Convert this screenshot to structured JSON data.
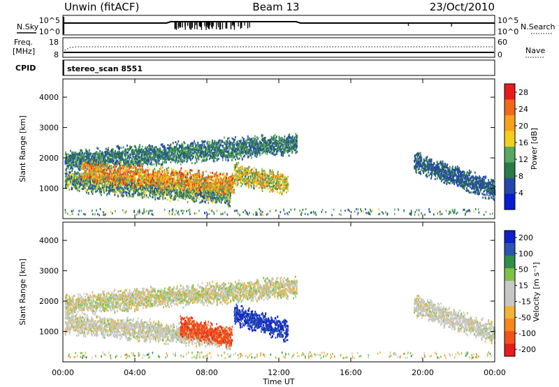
{
  "header": {
    "radar": "Unwin (fitACF)",
    "beam": "Beam 13",
    "date": "23/Oct/2010"
  },
  "sky_panel": {
    "left_label": "N.Sky",
    "right_label": "N.Search",
    "ticks": [
      "10^5",
      "10^0"
    ]
  },
  "freq_panel": {
    "left_label": "Freq.",
    "left_unit": "[MHz]",
    "left_ticks": [
      "18",
      "8"
    ],
    "right_label": "Nave",
    "right_ticks": [
      "60",
      "0"
    ]
  },
  "cpid_panel": {
    "label": "CPID",
    "value": "stereo_scan 8551"
  },
  "x_axis": {
    "label": "Time UT",
    "ticks": [
      "00:00",
      "04:00",
      "08:00",
      "12:00",
      "16:00",
      "20:00",
      "00:00"
    ]
  },
  "colors": {
    "power_scale": [
      "#0a1bd6",
      "#2448a8",
      "#2a7a45",
      "#58a763",
      "#f2cf1c",
      "#f6a21a",
      "#f1681a",
      "#e71d1d"
    ],
    "velocity_scale": [
      "#e51d1d",
      "#f2531a",
      "#f7871a",
      "#f3b33a",
      "#c7c7c5",
      "#c9c9c7",
      "#7ec347",
      "#2f8f4b",
      "#2b55b1",
      "#1120c8"
    ]
  },
  "chart_data": [
    {
      "type": "heatmap",
      "title": "",
      "xlabel": "",
      "ylabel": "Slant Range [km]",
      "xlim_hours": [
        0,
        24
      ],
      "ylim": [
        0,
        4600
      ],
      "yticks": [
        "1000",
        "2000",
        "3000",
        "4000"
      ],
      "colorbar": {
        "label": "Power [dB]",
        "ticks": [
          "4",
          "8",
          "12",
          "16",
          "20",
          "24",
          "28"
        ],
        "range": [
          0,
          30
        ]
      },
      "features": [
        {
          "name": "upper_band",
          "start_hour": 0.1,
          "end_hour": 13.0,
          "start_range": 1900,
          "end_range": 2500,
          "min_value": 4,
          "max_value": 14
        },
        {
          "name": "lower_band",
          "start_hour": 0.1,
          "end_hour": 9.3,
          "start_range": 1300,
          "end_range": 800,
          "min_value": 4,
          "max_value": 18
        },
        {
          "name": "main_echo",
          "start_hour": 1.0,
          "end_hour": 9.5,
          "start_range": 1600,
          "end_range": 1150,
          "min_value": 12,
          "max_value": 28
        },
        {
          "name": "patches",
          "start_hour": 9.5,
          "end_hour": 12.5,
          "start_range": 1500,
          "end_range": 1150,
          "min_value": 10,
          "max_value": 24
        },
        {
          "name": "evening",
          "start_hour": 19.5,
          "end_hour": 24.0,
          "start_range": 1900,
          "end_range": 950,
          "min_value": 4,
          "max_value": 10
        }
      ]
    },
    {
      "type": "heatmap",
      "title": "",
      "xlabel": "Time UT",
      "ylabel": "Slant Range [km]",
      "xlim_hours": [
        0,
        24
      ],
      "ylim": [
        0,
        4600
      ],
      "yticks": [
        "1000",
        "2000",
        "3000",
        "4000"
      ],
      "colorbar": {
        "label": "Velocity [m s⁻¹]",
        "ticks": [
          "200",
          "100",
          "50",
          "15",
          "-15",
          "-50",
          "-100",
          "-200"
        ],
        "range": [
          -250,
          250
        ]
      },
      "features": [
        {
          "name": "upper_band",
          "start_hour": 0.1,
          "end_hour": 13.0,
          "start_range": 1900,
          "end_range": 2500,
          "min_value": -30,
          "max_value": 30
        },
        {
          "name": "lower_band",
          "start_hour": 0.1,
          "end_hour": 9.3,
          "start_range": 1300,
          "end_range": 800,
          "min_value": -20,
          "max_value": 20
        },
        {
          "name": "negative_echo",
          "start_hour": 6.5,
          "end_hour": 9.4,
          "start_range": 1200,
          "end_range": 800,
          "min_value": -220,
          "max_value": -100
        },
        {
          "name": "positive_echo",
          "start_hour": 9.5,
          "end_hour": 12.5,
          "start_range": 1600,
          "end_range": 1050,
          "min_value": 150,
          "max_value": 250
        },
        {
          "name": "evening",
          "start_hour": 19.5,
          "end_hour": 24.0,
          "start_range": 1900,
          "end_range": 950,
          "min_value": -20,
          "max_value": 20
        }
      ]
    }
  ]
}
